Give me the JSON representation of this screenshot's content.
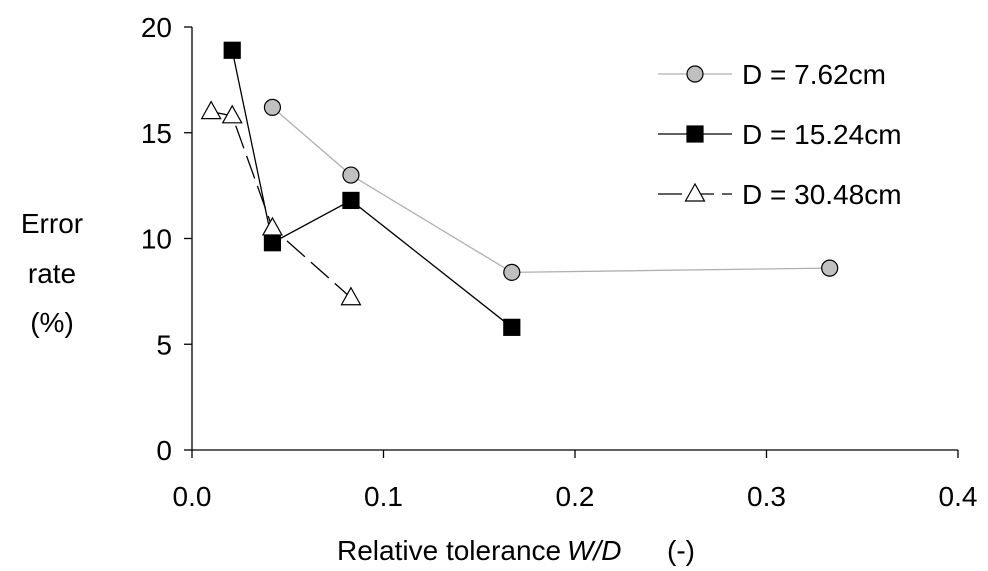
{
  "chart_data": {
    "type": "scatter",
    "title": "",
    "xlabel": "Relative tolerance",
    "xlabel_italic": "W/D",
    "xlabel_unit": "(-)",
    "ylabel_lines": [
      "Error",
      "rate",
      "(%)"
    ],
    "xlim": [
      0.0,
      0.4
    ],
    "ylim": [
      0,
      20
    ],
    "xticks": [
      "0.0",
      "0.1",
      "0.2",
      "0.3",
      "0.4"
    ],
    "xtick_values": [
      0.0,
      0.1,
      0.2,
      0.3,
      0.4
    ],
    "yticks": [
      "0",
      "5",
      "10",
      "15",
      "20"
    ],
    "ytick_values": [
      0,
      5,
      10,
      15,
      20
    ],
    "grid": false,
    "legend_position": "top-right",
    "series": [
      {
        "name": "D = 7.62cm",
        "marker": "circle",
        "marker_fill": "#c0c0c0",
        "line_color": "#b0b0b0",
        "line_style": "solid",
        "points": [
          [
            0.042,
            16.2
          ],
          [
            0.083,
            13.0
          ],
          [
            0.167,
            8.4
          ],
          [
            0.333,
            8.6
          ]
        ]
      },
      {
        "name": "D = 15.24cm",
        "marker": "square",
        "marker_fill": "#000000",
        "line_color": "#000000",
        "line_style": "solid",
        "points": [
          [
            0.021,
            18.9
          ],
          [
            0.042,
            9.8
          ],
          [
            0.083,
            11.8
          ],
          [
            0.167,
            5.8
          ]
        ]
      },
      {
        "name": "D = 30.48cm",
        "marker": "triangle",
        "marker_fill": "#ffffff",
        "line_color": "#000000",
        "line_style": "dashed",
        "points": [
          [
            0.01,
            16.0
          ],
          [
            0.021,
            15.8
          ],
          [
            0.042,
            10.5
          ],
          [
            0.083,
            7.2
          ]
        ]
      }
    ]
  }
}
